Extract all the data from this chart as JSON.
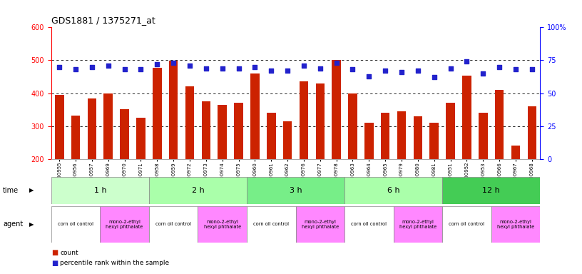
{
  "title": "GDS1881 / 1375271_at",
  "samples": [
    "GSM100955",
    "GSM100956",
    "GSM100957",
    "GSM100969",
    "GSM100970",
    "GSM100971",
    "GSM100958",
    "GSM100959",
    "GSM100972",
    "GSM100973",
    "GSM100974",
    "GSM100975",
    "GSM100960",
    "GSM100961",
    "GSM100962",
    "GSM100976",
    "GSM100977",
    "GSM100978",
    "GSM100963",
    "GSM100964",
    "GSM100965",
    "GSM100979",
    "GSM100980",
    "GSM100981",
    "GSM100951",
    "GSM100952",
    "GSM100953",
    "GSM100966",
    "GSM100967",
    "GSM100968"
  ],
  "counts": [
    395,
    332,
    383,
    400,
    352,
    325,
    477,
    499,
    420,
    375,
    365,
    370,
    460,
    340,
    315,
    435,
    430,
    502,
    400,
    310,
    340,
    344,
    330,
    310,
    370,
    453,
    340,
    410,
    240,
    360
  ],
  "percentile": [
    70,
    68,
    70,
    71,
    68,
    68,
    72,
    73,
    71,
    69,
    69,
    69,
    70,
    67,
    67,
    71,
    69,
    73,
    68,
    63,
    67,
    66,
    67,
    62,
    69,
    74,
    65,
    70,
    68,
    68
  ],
  "time_groups": [
    {
      "label": "1 h",
      "start": 0,
      "end": 6,
      "color": "#ccffcc"
    },
    {
      "label": "2 h",
      "start": 6,
      "end": 12,
      "color": "#aaffaa"
    },
    {
      "label": "3 h",
      "start": 12,
      "end": 18,
      "color": "#77ee88"
    },
    {
      "label": "6 h",
      "start": 18,
      "end": 24,
      "color": "#aaffaa"
    },
    {
      "label": "12 h",
      "start": 24,
      "end": 30,
      "color": "#44cc55"
    }
  ],
  "agent_groups": [
    {
      "label": "corn oil control",
      "start": 0,
      "end": 3,
      "color": "#ffffff"
    },
    {
      "label": "mono-2-ethyl\nhexyl phthalate",
      "start": 3,
      "end": 6,
      "color": "#ff88ff"
    },
    {
      "label": "corn oil control",
      "start": 6,
      "end": 9,
      "color": "#ffffff"
    },
    {
      "label": "mono-2-ethyl\nhexyl phthalate",
      "start": 9,
      "end": 12,
      "color": "#ff88ff"
    },
    {
      "label": "corn oil control",
      "start": 12,
      "end": 15,
      "color": "#ffffff"
    },
    {
      "label": "mono-2-ethyl\nhexyl phthalate",
      "start": 15,
      "end": 18,
      "color": "#ff88ff"
    },
    {
      "label": "corn oil control",
      "start": 18,
      "end": 21,
      "color": "#ffffff"
    },
    {
      "label": "mono-2-ethyl\nhexyl phthalate",
      "start": 21,
      "end": 24,
      "color": "#ff88ff"
    },
    {
      "label": "corn oil control",
      "start": 24,
      "end": 27,
      "color": "#ffffff"
    },
    {
      "label": "mono-2-ethyl\nhexyl phthalate",
      "start": 27,
      "end": 30,
      "color": "#ff88ff"
    }
  ],
  "ylim_left": [
    200,
    600
  ],
  "ylim_right": [
    0,
    100
  ],
  "yticks_left": [
    200,
    300,
    400,
    500,
    600
  ],
  "yticks_right": [
    0,
    25,
    50,
    75,
    100
  ],
  "dotted_lines": [
    300,
    400,
    500
  ],
  "bar_color": "#cc2200",
  "dot_color": "#2222cc",
  "bg_color": "#ffffff"
}
